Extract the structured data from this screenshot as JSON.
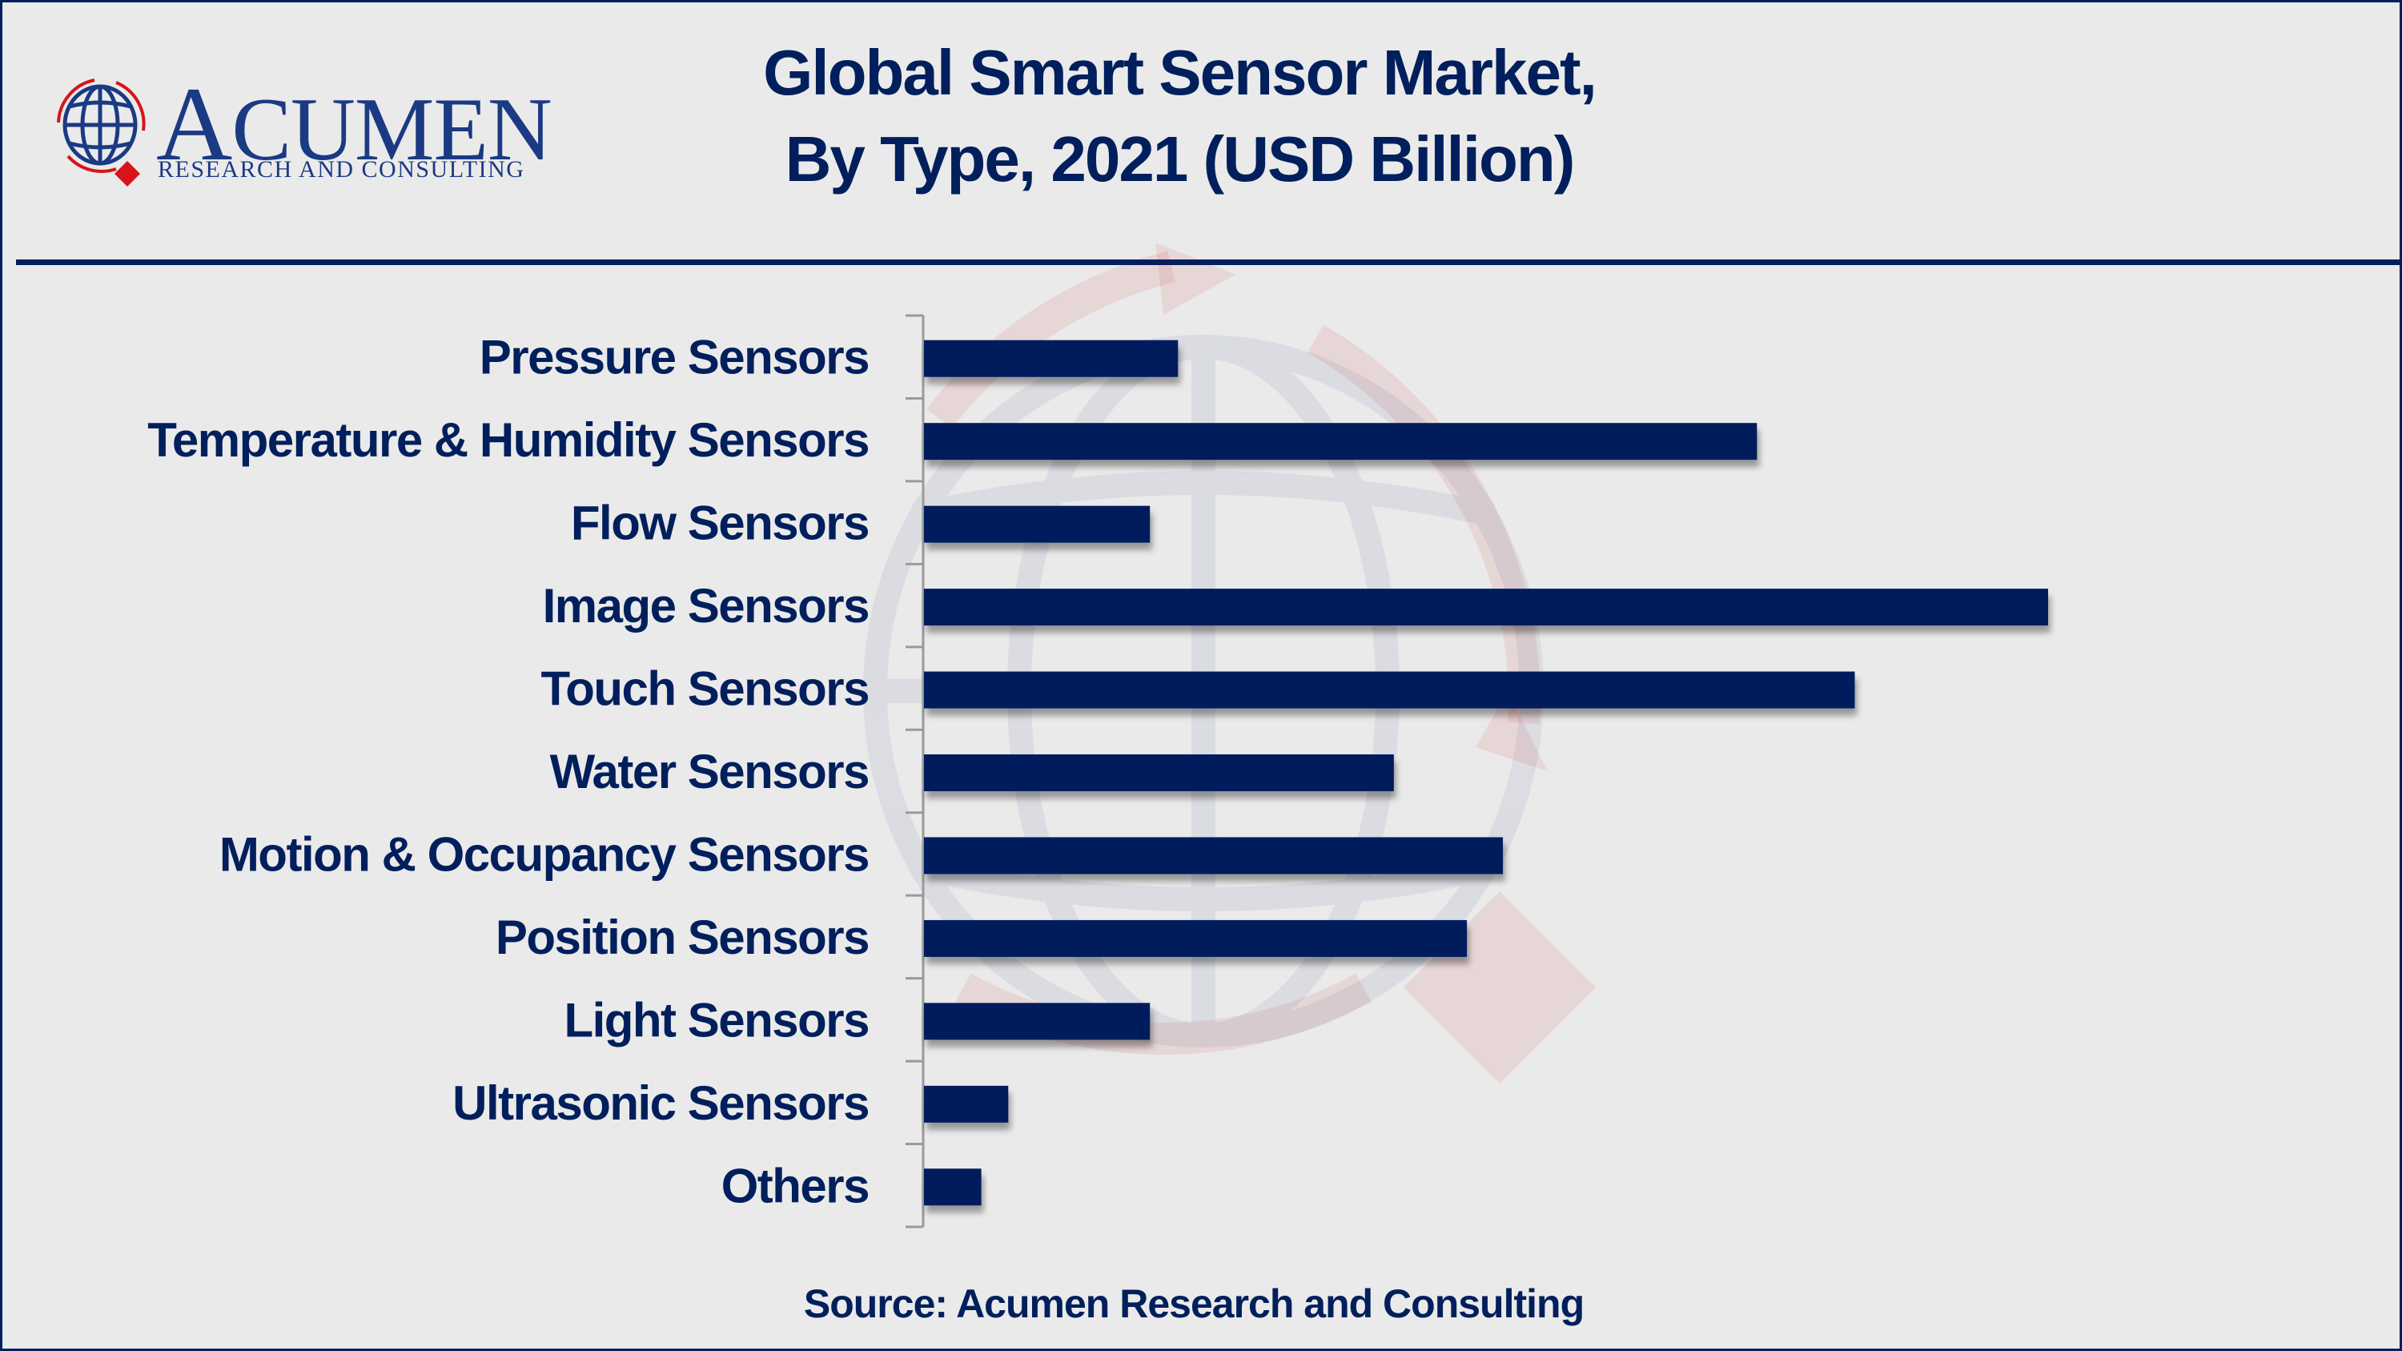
{
  "branding": {
    "logo_word": "ACUMEN",
    "logo_tagline": "RESEARCH AND CONSULTING",
    "colors": {
      "navy": "#001f5c",
      "logo_blue": "#1b3a84",
      "logo_red": "#d7141a",
      "background": "#eaeaea"
    }
  },
  "header": {
    "title_line1": "Global Smart Sensor Market,",
    "title_line2": "By Type, 2021 (USD Billion)"
  },
  "footer": {
    "source": "Source: Acumen Research and Consulting"
  },
  "chart_data": {
    "type": "bar",
    "orientation": "horizontal",
    "title": "Global Smart Sensor Market, By Type, 2021 (USD Billion)",
    "xlabel": "",
    "ylabel": "",
    "value_note": "No value axis or data labels shown; values are relative estimates on an index where Image Sensors = 10",
    "categories": [
      "Pressure Sensors",
      "Temperature & Humidity Sensors",
      "Flow Sensors",
      "Image Sensors",
      "Touch Sensors",
      "Water Sensors",
      "Motion & Occupancy Sensors",
      "Position Sensors",
      "Light Sensors",
      "Ultrasonic Sensors",
      "Others"
    ],
    "values": [
      2.26,
      7.41,
      2.01,
      10.0,
      8.28,
      4.18,
      5.15,
      4.83,
      2.01,
      0.75,
      0.51
    ],
    "xlim": [
      0,
      10.0
    ],
    "grid": false,
    "legend": "none",
    "bar_color": "#001f5c"
  }
}
